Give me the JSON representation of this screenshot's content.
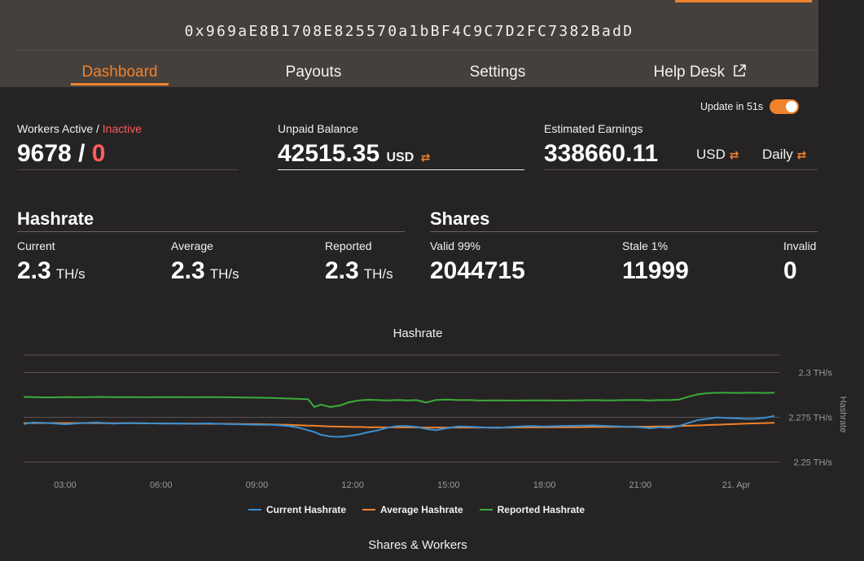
{
  "header": {
    "address": "0x969aE8B1708E825570a1bBF4C9C7D2FC7382BadD"
  },
  "nav": {
    "tabs": [
      {
        "label": "Dashboard"
      },
      {
        "label": "Payouts"
      },
      {
        "label": "Settings"
      },
      {
        "label": "Help Desk"
      }
    ]
  },
  "update": {
    "label": "Update in 51s",
    "enabled": true
  },
  "summary": {
    "workers": {
      "label_active": "Workers Active /",
      "label_inactive": "Inactive",
      "active": "9678",
      "separator": "/",
      "inactive": "0"
    },
    "unpaid": {
      "label": "Unpaid Balance",
      "value": "42515.35",
      "unit": "USD"
    },
    "earnings": {
      "label": "Estimated Earnings",
      "value": "338660.11",
      "unit": "USD",
      "period": "Daily"
    }
  },
  "hashrate": {
    "title": "Hashrate",
    "current": {
      "label": "Current",
      "value": "2.3",
      "unit": "TH/s"
    },
    "average": {
      "label": "Average",
      "value": "2.3",
      "unit": "TH/s"
    },
    "reported": {
      "label": "Reported",
      "value": "2.3",
      "unit": "TH/s"
    }
  },
  "shares": {
    "title": "Shares",
    "valid": {
      "label": "Valid 99%",
      "value": "2044715"
    },
    "stale": {
      "label": "Stale 1%",
      "value": "11999"
    },
    "invalid": {
      "label": "Invalid",
      "value": "0"
    }
  },
  "colors": {
    "accent": "#f0822d",
    "current": "#3a8fd0",
    "average": "#f0822d",
    "reported": "#3aad3a",
    "inactive": "#ff5d5d"
  },
  "chart_data": {
    "type": "line",
    "title": "Hashrate",
    "ylabel": "Hashrate",
    "x_ticks": [
      "03:00",
      "06:00",
      "09:00",
      "12:00",
      "15:00",
      "18:00",
      "21:00",
      "21. Apr"
    ],
    "y_ticks": [
      "2.25 TH/s",
      "2.275 TH/s",
      "2.3 TH/s"
    ],
    "ylim": [
      2.25,
      2.3
    ],
    "x_hours": [
      1.7,
      2,
      2.5,
      3,
      3.5,
      4,
      4.5,
      5,
      5.5,
      6,
      6.5,
      7,
      7.5,
      8,
      8.5,
      9,
      9.5,
      10,
      10.3,
      10.6,
      10.8,
      11,
      11.3,
      11.6,
      11.9,
      12.2,
      12.5,
      12.8,
      13.1,
      13.4,
      13.7,
      14,
      14.3,
      14.6,
      15,
      15.3,
      15.6,
      16,
      16.5,
      17,
      17.5,
      18,
      18.5,
      19,
      19.5,
      20,
      20.5,
      21,
      21.3,
      21.6,
      21.9,
      22.2,
      22.5,
      22.8,
      23.1,
      23.4,
      23.7,
      24,
      24.3,
      24.6,
      24.9,
      25.2
    ],
    "series": [
      {
        "name": "Current Hashrate",
        "values": [
          2.274,
          2.2748,
          2.2745,
          2.2738,
          2.2745,
          2.2748,
          2.2742,
          2.2745,
          2.2744,
          2.2742,
          2.2743,
          2.2741,
          2.2743,
          2.274,
          2.2738,
          2.2736,
          2.2735,
          2.2728,
          2.272,
          2.2705,
          2.2695,
          2.268,
          2.267,
          2.2668,
          2.2673,
          2.2682,
          2.2695,
          2.2705,
          2.272,
          2.2728,
          2.2728,
          2.2724,
          2.2712,
          2.2705,
          2.2718,
          2.2726,
          2.2725,
          2.2722,
          2.2718,
          2.2724,
          2.2728,
          2.2726,
          2.2728,
          2.273,
          2.2732,
          2.2728,
          2.2725,
          2.2722,
          2.2716,
          2.2722,
          2.2718,
          2.2728,
          2.2745,
          2.2762,
          2.2768,
          2.2777,
          2.2773,
          2.2772,
          2.2768,
          2.2769,
          2.2775,
          2.2785
        ]
      },
      {
        "name": "Average Hashrate",
        "values": [
          2.2745,
          2.2745,
          2.2745,
          2.2745,
          2.2745,
          2.2745,
          2.2744,
          2.2744,
          2.2743,
          2.2743,
          2.2742,
          2.2742,
          2.2741,
          2.2741,
          2.274,
          2.2739,
          2.2737,
          2.2735,
          2.2733,
          2.2731,
          2.273,
          2.2728,
          2.2726,
          2.2725,
          2.2724,
          2.2723,
          2.2722,
          2.2722,
          2.2721,
          2.2721,
          2.2721,
          2.2721,
          2.272,
          2.272,
          2.272,
          2.272,
          2.272,
          2.272,
          2.272,
          2.272,
          2.2721,
          2.2721,
          2.2722,
          2.2722,
          2.2723,
          2.2723,
          2.2724,
          2.2725,
          2.2725,
          2.2726,
          2.2726,
          2.2728,
          2.273,
          2.2732,
          2.2734,
          2.2736,
          2.2738,
          2.274,
          2.2742,
          2.2743,
          2.2745,
          2.2747
        ]
      },
      {
        "name": "Reported Hashrate",
        "values": [
          2.2891,
          2.289,
          2.2888,
          2.289,
          2.2889,
          2.2891,
          2.289,
          2.289,
          2.2889,
          2.289,
          2.289,
          2.2889,
          2.289,
          2.2889,
          2.2888,
          2.2887,
          2.2885,
          2.2882,
          2.288,
          2.2878,
          2.2835,
          2.2848,
          2.2835,
          2.2843,
          2.2862,
          2.2872,
          2.2875,
          2.2873,
          2.2872,
          2.2874,
          2.2872,
          2.2873,
          2.286,
          2.2874,
          2.2876,
          2.2873,
          2.2874,
          2.2871,
          2.2872,
          2.2871,
          2.2872,
          2.2872,
          2.2871,
          2.2872,
          2.2873,
          2.2872,
          2.2873,
          2.2873,
          2.2872,
          2.2873,
          2.2873,
          2.2876,
          2.2892,
          2.2905,
          2.2912,
          2.2914,
          2.2914,
          2.2913,
          2.2914,
          2.2914,
          2.2913,
          2.2915
        ]
      }
    ]
  }
}
